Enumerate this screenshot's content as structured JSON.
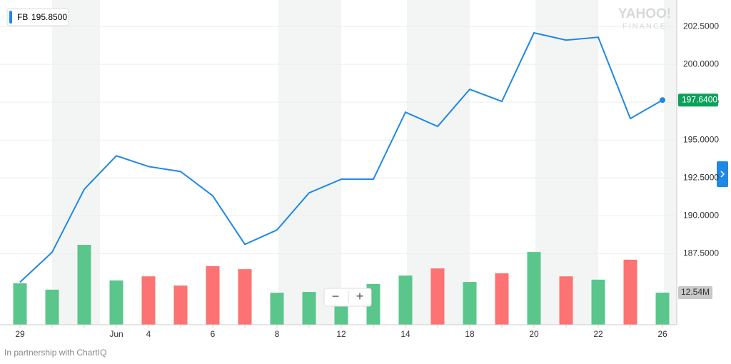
{
  "chart_data": {
    "type": "line",
    "legend": {
      "name": "FB",
      "value": "195.8500"
    },
    "watermark": [
      "YAHOO!",
      "FINANCE"
    ],
    "footer": "In partnership with ChartIQ",
    "zoom_controls": [
      "−",
      "+"
    ],
    "categories": [
      "29",
      null,
      null,
      "Jun",
      "4",
      null,
      "6",
      null,
      "8",
      null,
      "12",
      null,
      "14",
      null,
      "18",
      null,
      "20",
      null,
      "22",
      null,
      "26"
    ],
    "series": [
      {
        "name": "FB",
        "color": "#1e88e5",
        "values": [
          185.61,
          187.59,
          191.75,
          193.96,
          193.25,
          192.92,
          191.32,
          188.11,
          189.06,
          191.51,
          192.41,
          192.41,
          196.84,
          195.9,
          198.35,
          197.55,
          202.08,
          201.6,
          201.79,
          196.42,
          197.64
        ]
      },
      {
        "name": "Volume",
        "axis": "y2",
        "colors": [
          "#5ac68c",
          "#5ac68c",
          "#5ac68c",
          "#5ac68c",
          "#fd7272",
          "#fd7272",
          "#fd7272",
          "#fd7272",
          "#5ac68c",
          "#5ac68c",
          "#5ac68c",
          "#5ac68c",
          "#5ac68c",
          "#fd7272",
          "#5ac68c",
          "#fd7272",
          "#5ac68c",
          "#fd7272",
          "#5ac68c",
          "#fd7272",
          "#5ac68c"
        ],
        "values": [
          16.2,
          13.7,
          31.2,
          17.3,
          18.9,
          15.3,
          22.9,
          21.7,
          12.5,
          12.8,
          11.0,
          15.9,
          19.2,
          22.0,
          16.7,
          20.1,
          28.4,
          18.9,
          17.6,
          25.4,
          12.54
        ]
      }
    ],
    "last_price": {
      "value": 197.64,
      "label": "197.6400"
    },
    "ylim": [
      182.8,
      204.25
    ],
    "yticks": [
      {
        "value": 187.5,
        "label": "187.5000"
      },
      {
        "value": 190,
        "label": "190.0000"
      },
      {
        "value": 192.5,
        "label": "192.5000"
      },
      {
        "value": 195,
        "label": "195.0000"
      },
      {
        "value": 197.5,
        "label": "197.5000"
      },
      {
        "value": 200,
        "label": "200.0000"
      },
      {
        "value": 202.5,
        "label": "202.5000"
      }
    ],
    "y2lim": [
      0,
      126.8
    ],
    "y2ticks": [
      {
        "value": 12.54,
        "label": "12.54M"
      }
    ],
    "grid": true
  }
}
